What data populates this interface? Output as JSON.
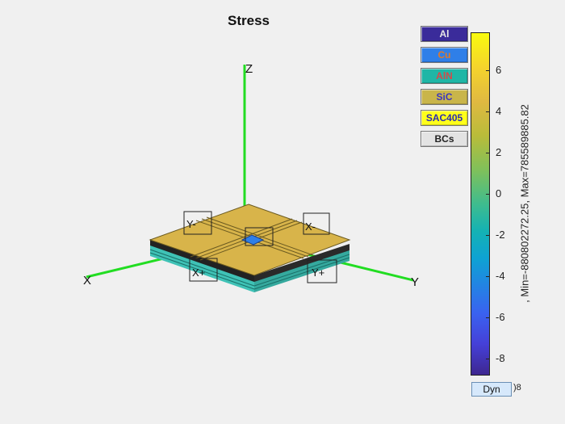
{
  "title": "Stress",
  "materials": [
    {
      "label": "Al",
      "bg": "#3a2b9a",
      "fg": "#e6e6e6"
    },
    {
      "label": "Cu",
      "bg": "#2f7fe8",
      "fg": "#e07a2a"
    },
    {
      "label": "AlN",
      "bg": "#1fb6a6",
      "fg": "#d44a4a"
    },
    {
      "label": "SiC",
      "bg": "#c9b54a",
      "fg": "#3a36c0"
    },
    {
      "label": "SAC405",
      "bg": "#ffff1a",
      "fg": "#2b2bb0"
    },
    {
      "label": "BCs",
      "bg": "#e3e3e3",
      "fg": "#222222"
    }
  ],
  "colorbar": {
    "ticks": [
      "6",
      "4",
      "2",
      "0",
      "-2",
      "-4",
      "-6",
      "-8"
    ],
    "label": ", Min=-880802272.25, Max=785589885.82"
  },
  "dyn_button": {
    "label": "Dyn",
    "exponent": ")8"
  },
  "axes": {
    "x": "X",
    "y": "Y",
    "z": "Z"
  },
  "face_labels": {
    "y_minus": "Y-",
    "x_minus": "X-",
    "x_plus": "X+",
    "y_plus": "Y+"
  },
  "colors": {
    "axis_green": "#22dd22",
    "plate_top": "#d8b44a",
    "substrate": "#3fc2b6"
  }
}
